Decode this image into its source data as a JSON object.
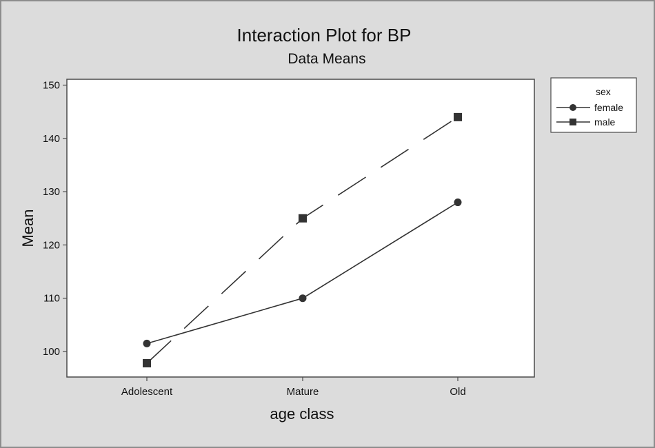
{
  "chart_data": {
    "type": "line",
    "title": "Interaction Plot for BP",
    "subtitle": "Data Means",
    "xlabel": "age class",
    "ylabel": "Mean",
    "categories": [
      "Adolescent",
      "Mature",
      "Old"
    ],
    "y_ticks": [
      100,
      110,
      120,
      130,
      140,
      150
    ],
    "ylim": [
      95,
      150.5
    ],
    "legend": {
      "title": "sex",
      "placement": "right"
    },
    "grid": false,
    "series": [
      {
        "name": "female",
        "values": [
          101.5,
          110,
          128
        ],
        "marker": "circle",
        "line": "solid",
        "color": "#333333"
      },
      {
        "name": "male",
        "values": [
          97.8,
          125,
          144
        ],
        "marker": "square",
        "line": "dashed",
        "color": "#333333"
      }
    ]
  }
}
